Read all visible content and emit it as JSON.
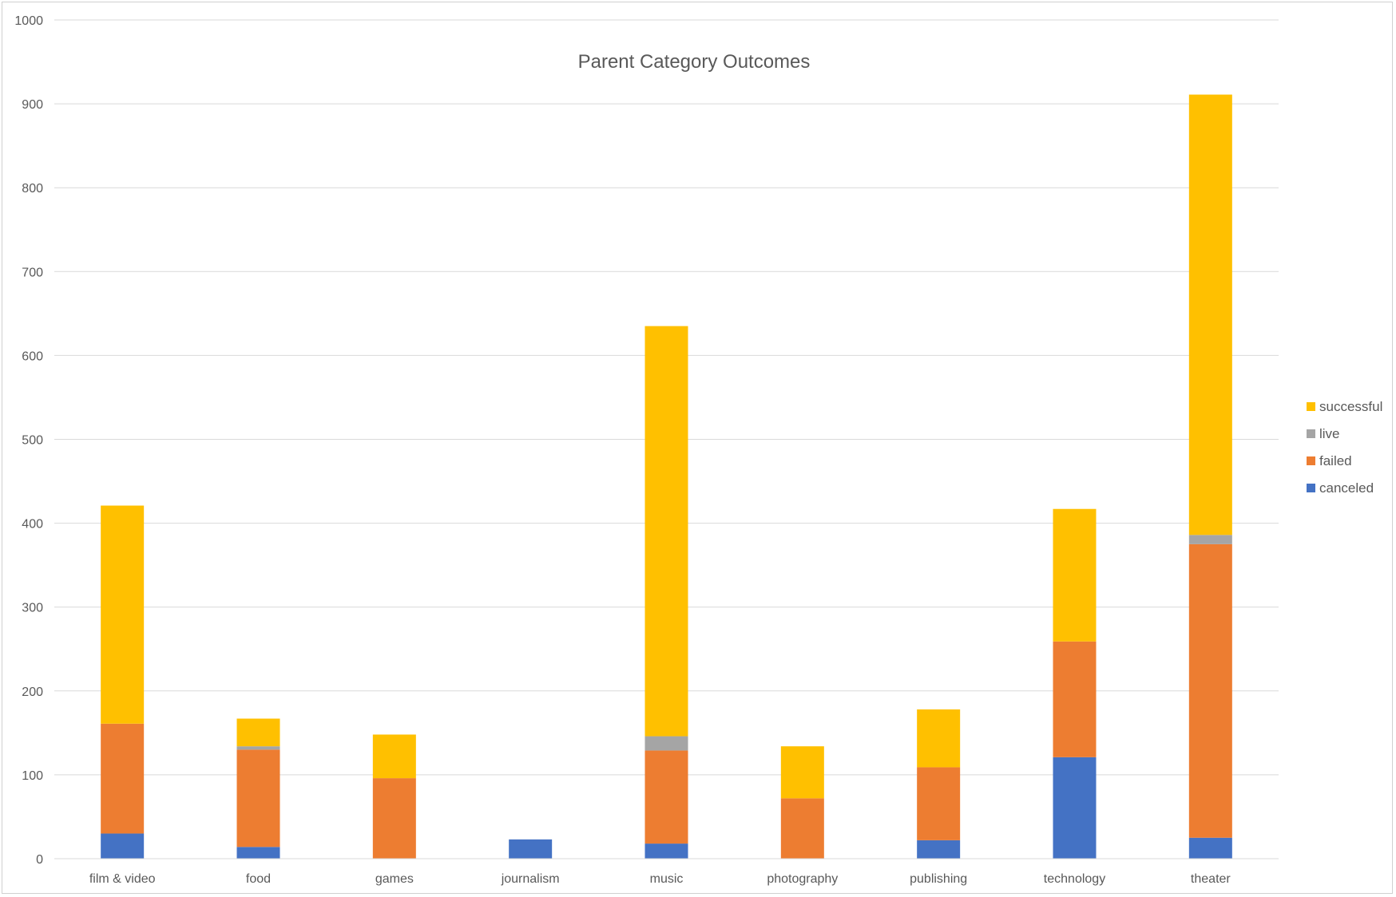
{
  "chart_data": {
    "type": "bar",
    "stacked": true,
    "title": "Parent Category Outcomes",
    "xlabel": "",
    "ylabel": "",
    "ylim": [
      0,
      1000
    ],
    "yticks": [
      0,
      100,
      200,
      300,
      400,
      500,
      600,
      700,
      800,
      900,
      1000
    ],
    "grid": true,
    "legend_position": "right",
    "categories": [
      "film & video",
      "food",
      "games",
      "journalism",
      "music",
      "photography",
      "publishing",
      "technology",
      "theater"
    ],
    "series": [
      {
        "name": "canceled",
        "color": "#4472C4",
        "values": [
          30,
          14,
          0,
          23,
          18,
          0,
          22,
          121,
          25
        ]
      },
      {
        "name": "failed",
        "color": "#ED7D31",
        "values": [
          131,
          116,
          96,
          0,
          111,
          72,
          87,
          138,
          350
        ]
      },
      {
        "name": "live",
        "color": "#A5A5A5",
        "values": [
          0,
          4,
          0,
          0,
          17,
          0,
          0,
          0,
          11
        ]
      },
      {
        "name": "successful",
        "color": "#FFC000",
        "values": [
          260,
          33,
          52,
          0,
          489,
          62,
          69,
          158,
          525
        ]
      }
    ],
    "legend_order": [
      "successful",
      "live",
      "failed",
      "canceled"
    ]
  }
}
